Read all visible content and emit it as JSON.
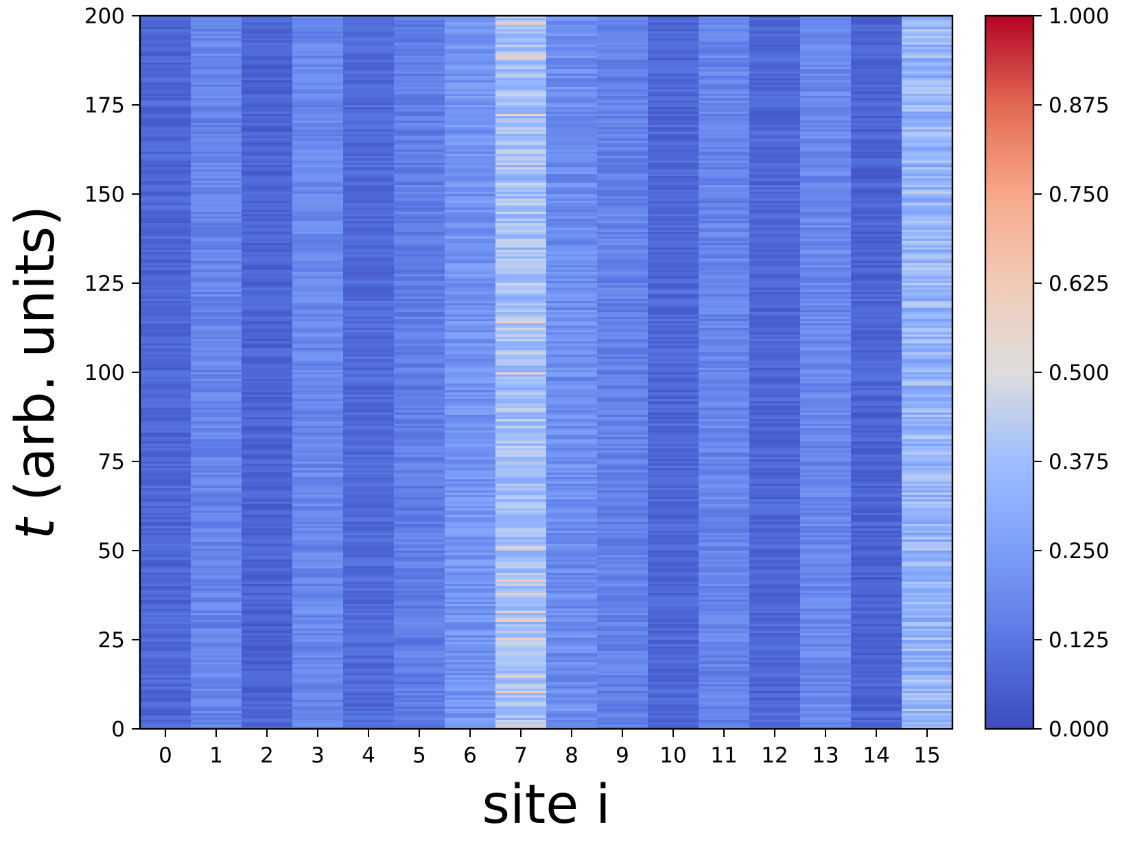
{
  "chart_data": {
    "type": "heatmap",
    "xlabel": "site i",
    "ylabel_var": "t",
    "ylabel_rest": " (arb. units)",
    "x_categories": [
      "0",
      "1",
      "2",
      "3",
      "4",
      "5",
      "6",
      "7",
      "8",
      "9",
      "10",
      "11",
      "12",
      "13",
      "14",
      "15"
    ],
    "y_ticks": [
      0,
      25,
      50,
      75,
      100,
      125,
      150,
      175,
      200
    ],
    "y_tick_labels": [
      "0",
      "25",
      "50",
      "75",
      "100",
      "125",
      "150",
      "175",
      "200"
    ],
    "ylim": [
      0,
      200
    ],
    "colorbar": {
      "range": [
        0,
        1
      ],
      "ticks": [
        0,
        0.125,
        0.25,
        0.375,
        0.5,
        0.625,
        0.75,
        0.875,
        1.0
      ],
      "tick_labels": [
        "0.000",
        "0.125",
        "0.250",
        "0.375",
        "0.500",
        "0.625",
        "0.750",
        "0.875",
        "1.000"
      ],
      "colormap": "coolwarm"
    },
    "site_mean_values": [
      0.08,
      0.17,
      0.07,
      0.18,
      0.09,
      0.15,
      0.22,
      0.38,
      0.2,
      0.16,
      0.08,
      0.17,
      0.08,
      0.18,
      0.07,
      0.34
    ],
    "site_fluctuation": [
      0.04,
      0.05,
      0.04,
      0.05,
      0.04,
      0.05,
      0.06,
      0.09,
      0.06,
      0.05,
      0.04,
      0.05,
      0.04,
      0.05,
      0.04,
      0.1
    ],
    "peak_site": 7,
    "peak_values": [
      0.62,
      0.6,
      0.58
    ]
  },
  "colors": {
    "low": "#3b4cc0",
    "mid": "#dddddd",
    "high": "#b40426"
  }
}
